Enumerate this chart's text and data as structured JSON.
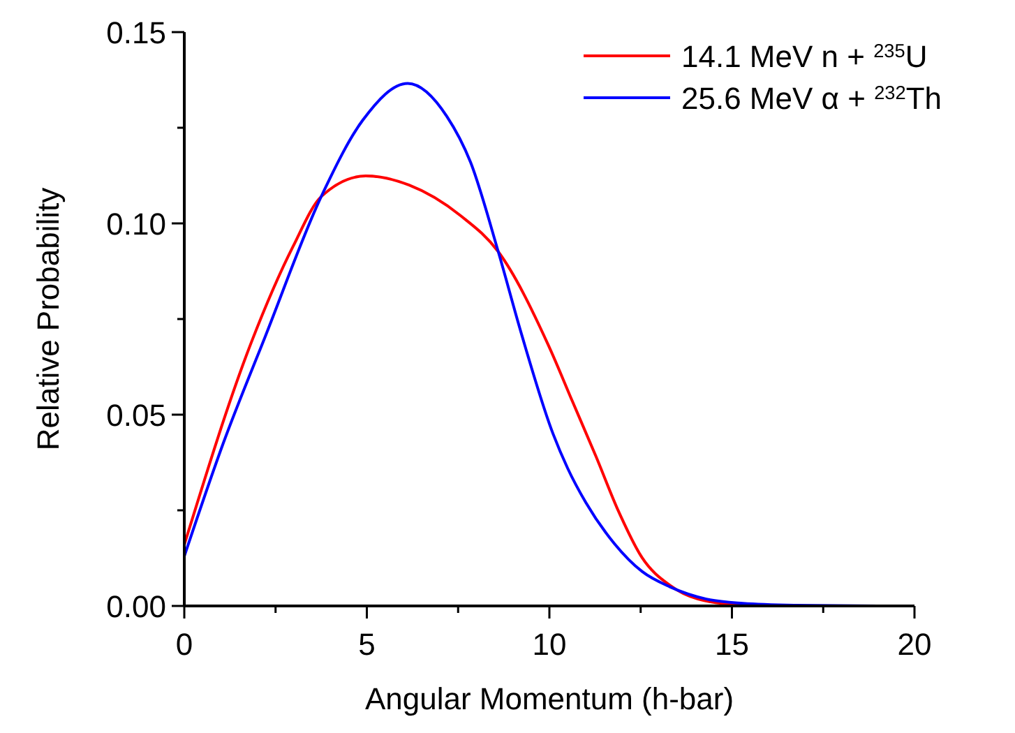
{
  "chart_data": {
    "type": "line",
    "xlabel": "Angular Momentum (h-bar)",
    "ylabel": "Relative Probability",
    "xlim": [
      0,
      20
    ],
    "ylim": [
      0,
      0.15
    ],
    "xticks": [
      0,
      {
        "value": 2.5,
        "label": null
      },
      5,
      {
        "value": 7.5,
        "label": null
      },
      10,
      {
        "value": 12.5,
        "label": null
      },
      15,
      {
        "value": 17.5,
        "label": null
      },
      20
    ],
    "yticks": [
      {
        "value": 0,
        "label": "0.00"
      },
      {
        "value": 0.025,
        "label": null
      },
      {
        "value": 0.05,
        "label": "0.05"
      },
      {
        "value": 0.075,
        "label": null
      },
      {
        "value": 0.1,
        "label": "0.10"
      },
      {
        "value": 0.125,
        "label": null
      },
      {
        "value": 0.15,
        "label": "0.15"
      }
    ],
    "grid": false,
    "legend": "top right",
    "marker": "none",
    "line_style": "solid",
    "series": [
      {
        "name": "14.1 MeV n + $^{235}$U",
        "color": "#ff0000",
        "x": [
          0,
          1.84,
          2.98,
          3.75,
          4.97,
          6.16,
          7.57,
          8.6,
          9.98,
          10.63,
          11.28,
          11.9,
          12.54,
          13.3,
          14.07,
          15.1,
          17
        ],
        "values": [
          0.016,
          0.069,
          0.094,
          0.107,
          0.1124,
          0.11,
          0.102,
          0.0926,
          0.068,
          0.0535,
          0.039,
          0.0246,
          0.0126,
          0.0054,
          0.0018,
          0.0004,
          0
        ]
      },
      {
        "name": "25.6 MeV α + $^{232}$Th",
        "color": "#0000ff",
        "x": [
          0,
          1.07,
          2.22,
          3.75,
          4.89,
          6.12,
          7.19,
          7.84,
          8.6,
          9.22,
          10.1,
          10.5,
          11.0,
          11.78,
          12.54,
          13.3,
          14.3,
          15.3,
          16.7,
          19
        ],
        "values": [
          0.013,
          0.0426,
          0.0705,
          0.107,
          0.127,
          0.1366,
          0.128,
          0.116,
          0.0926,
          0.0716,
          0.045,
          0.036,
          0.027,
          0.0163,
          0.009,
          0.005,
          0.0018,
          0.0007,
          0.0002,
          0
        ]
      }
    ]
  }
}
